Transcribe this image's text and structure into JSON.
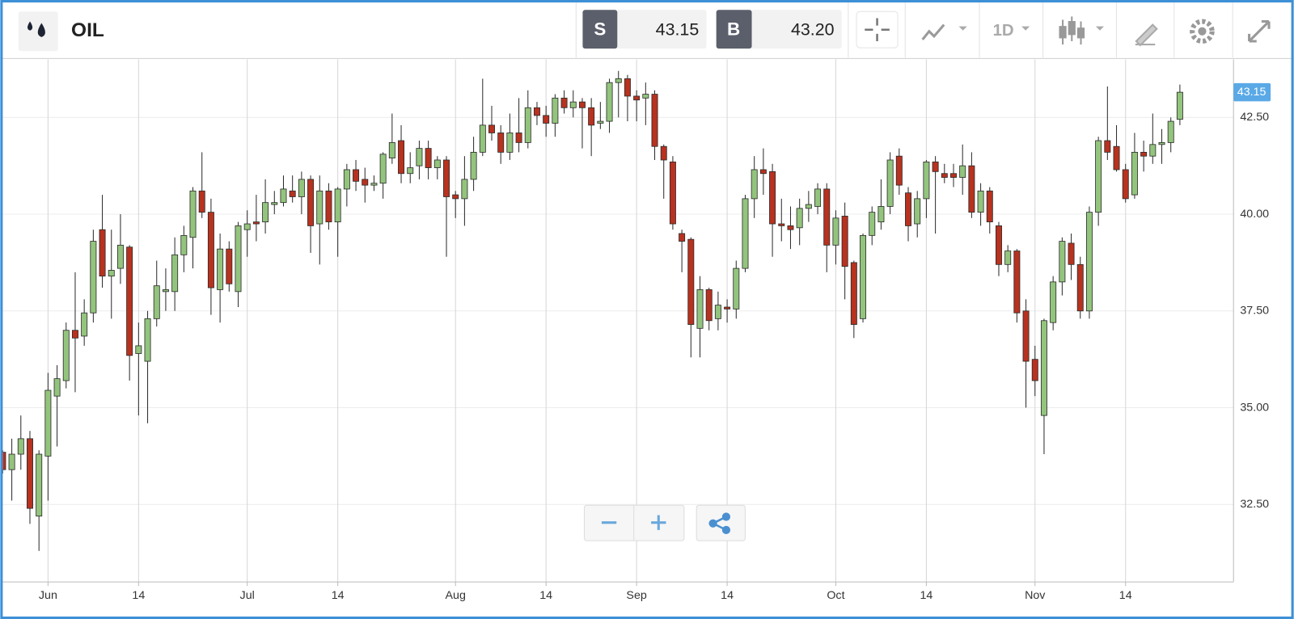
{
  "toolbar": {
    "symbol": "OIL",
    "sell_label": "S",
    "sell_price": "43.15",
    "buy_label": "B",
    "buy_price": "43.20",
    "interval": "1D"
  },
  "chart_data": {
    "type": "candlestick",
    "categories": [
      null,
      null,
      null,
      null,
      null,
      "Jun",
      null,
      null,
      null,
      null,
      null,
      null,
      null,
      null,
      null,
      "14",
      null,
      null,
      null,
      null,
      null,
      null,
      null,
      null,
      null,
      null,
      null,
      "Jul",
      null,
      null,
      null,
      null,
      null,
      null,
      null,
      null,
      null,
      "14",
      null,
      null,
      null,
      null,
      null,
      null,
      null,
      null,
      null,
      null,
      null,
      null,
      "Aug",
      null,
      null,
      null,
      null,
      null,
      null,
      null,
      null,
      null,
      "14",
      null,
      null,
      null,
      null,
      null,
      null,
      null,
      null,
      null,
      "Sep",
      null,
      null,
      null,
      null,
      null,
      null,
      null,
      null,
      null,
      "14",
      null,
      null,
      null,
      null,
      null,
      null,
      null,
      null,
      null,
      null,
      null,
      "Oct",
      null,
      null,
      null,
      null,
      null,
      null,
      null,
      null,
      null,
      "14",
      null,
      null,
      null,
      null,
      null,
      null,
      null,
      null,
      null,
      null,
      null,
      "Nov",
      null,
      null,
      null,
      null,
      null,
      null,
      null,
      null,
      null,
      "14",
      null,
      null,
      null,
      null,
      null,
      null
    ],
    "open": [
      33.85,
      33.4,
      33.8,
      34.2,
      32.2,
      33.75,
      35.3,
      35.7,
      37.0,
      36.85,
      37.45,
      39.6,
      38.4,
      38.6,
      39.15,
      36.4,
      36.2,
      37.3,
      38.0,
      38.0,
      38.95,
      39.4,
      40.6,
      40.05,
      38.05,
      39.1,
      38.0,
      39.6,
      39.8,
      39.8,
      40.25,
      40.3,
      40.6,
      40.45,
      40.9,
      39.75,
      40.6,
      39.8,
      40.65,
      41.15,
      40.9,
      40.75,
      40.8,
      41.45,
      41.9,
      41.05,
      41.25,
      41.7,
      41.2,
      41.4,
      40.5,
      40.4,
      40.9,
      41.6,
      42.3,
      42.1,
      41.6,
      42.1,
      41.85,
      42.75,
      42.55,
      42.35,
      43.0,
      42.75,
      42.9,
      42.75,
      42.35,
      42.4,
      43.4,
      43.5,
      43.05,
      43.0,
      43.1,
      41.75,
      41.35,
      39.5,
      39.35,
      37.05,
      38.05,
      37.3,
      37.6,
      37.55,
      38.6,
      40.4,
      41.15,
      41.1,
      39.75,
      39.7,
      39.65,
      40.15,
      40.2,
      40.65,
      39.2,
      39.95,
      38.75,
      37.3,
      39.45,
      39.8,
      40.2,
      41.5,
      40.55,
      39.75,
      40.4,
      41.35,
      41.05,
      41.05,
      40.95,
      41.25,
      40.05,
      40.6,
      39.7,
      38.7,
      39.05,
      37.5,
      36.25,
      34.8,
      37.2,
      38.25,
      39.25,
      38.7,
      37.5,
      40.05,
      41.9,
      41.75,
      41.15,
      40.5,
      41.6,
      41.5,
      41.8,
      41.85,
      42.45
    ],
    "high": [
      33.9,
      34.2,
      34.8,
      34.4,
      33.9,
      35.9,
      36.1,
      37.2,
      38.5,
      37.8,
      39.6,
      40.5,
      39.6,
      40.0,
      39.2,
      37.2,
      37.5,
      38.8,
      38.6,
      39.4,
      39.7,
      40.7,
      41.6,
      40.4,
      39.5,
      39.3,
      39.8,
      40.1,
      40.5,
      40.9,
      40.6,
      41.0,
      41.0,
      41.1,
      41.0,
      41.0,
      40.8,
      40.7,
      41.3,
      41.4,
      41.2,
      41.0,
      41.6,
      42.6,
      42.3,
      41.6,
      41.9,
      41.9,
      41.5,
      41.5,
      40.6,
      41.5,
      42.0,
      43.5,
      42.8,
      42.3,
      42.6,
      43.0,
      43.2,
      42.9,
      42.8,
      43.1,
      43.2,
      43.2,
      43.0,
      43.0,
      42.9,
      43.5,
      43.7,
      43.6,
      43.2,
      43.4,
      43.2,
      41.8,
      41.5,
      39.6,
      39.4,
      38.4,
      38.1,
      38.0,
      37.8,
      38.8,
      40.5,
      41.5,
      41.7,
      41.3,
      40.4,
      40.2,
      40.4,
      40.6,
      40.8,
      40.8,
      40.1,
      40.3,
      38.8,
      39.5,
      40.2,
      40.9,
      41.6,
      41.7,
      40.7,
      40.6,
      41.4,
      41.5,
      41.3,
      41.3,
      41.8,
      41.6,
      40.8,
      40.7,
      39.8,
      39.2,
      39.1,
      37.8,
      36.6,
      37.3,
      38.4,
      39.4,
      39.5,
      38.9,
      40.2,
      42.0,
      43.3,
      42.3,
      41.3,
      42.1,
      41.9,
      42.6,
      42.2,
      42.5,
      43.35
    ],
    "low": [
      33.3,
      32.6,
      33.4,
      32.0,
      31.3,
      32.6,
      34.0,
      35.5,
      35.4,
      36.6,
      37.2,
      38.1,
      37.3,
      38.2,
      35.7,
      34.8,
      34.6,
      37.1,
      37.5,
      37.5,
      38.5,
      38.6,
      39.9,
      37.4,
      37.2,
      38.0,
      37.6,
      38.9,
      39.3,
      39.5,
      40.0,
      40.2,
      40.3,
      40.0,
      39.0,
      38.7,
      39.6,
      38.9,
      40.2,
      40.6,
      40.3,
      40.6,
      40.4,
      41.3,
      40.8,
      40.8,
      40.9,
      40.9,
      40.9,
      38.9,
      39.9,
      39.7,
      40.6,
      41.5,
      41.9,
      41.3,
      41.4,
      41.6,
      41.7,
      42.3,
      42.0,
      42.0,
      42.6,
      42.5,
      41.7,
      41.5,
      42.2,
      42.1,
      42.5,
      42.4,
      42.4,
      42.3,
      41.4,
      40.4,
      39.6,
      38.5,
      36.3,
      36.3,
      37.0,
      37.0,
      37.2,
      37.3,
      38.5,
      39.9,
      40.5,
      38.9,
      39.3,
      39.1,
      39.2,
      39.8,
      40.0,
      38.5,
      38.7,
      37.8,
      36.8,
      37.2,
      39.2,
      39.6,
      40.0,
      40.5,
      39.3,
      39.4,
      39.9,
      39.5,
      40.8,
      40.7,
      40.5,
      39.9,
      39.7,
      39.5,
      38.4,
      38.5,
      37.2,
      35.0,
      35.3,
      33.8,
      37.0,
      37.9,
      38.3,
      37.3,
      37.3,
      39.7,
      41.4,
      41.1,
      40.3,
      40.4,
      41.1,
      41.3,
      41.3,
      41.6,
      42.3
    ],
    "close": [
      33.4,
      33.8,
      34.2,
      32.4,
      33.8,
      35.45,
      35.75,
      37.0,
      36.8,
      37.45,
      39.3,
      38.4,
      38.55,
      39.2,
      36.35,
      36.6,
      37.3,
      38.15,
      38.05,
      38.95,
      39.45,
      40.6,
      40.05,
      38.1,
      39.1,
      38.2,
      39.7,
      39.75,
      39.75,
      40.3,
      40.3,
      40.65,
      40.45,
      40.9,
      39.7,
      40.6,
      39.8,
      40.65,
      41.15,
      40.85,
      40.75,
      40.8,
      41.55,
      41.85,
      41.05,
      41.2,
      41.7,
      41.2,
      41.4,
      40.45,
      40.4,
      40.9,
      41.6,
      42.3,
      42.1,
      41.6,
      42.1,
      41.85,
      42.75,
      42.55,
      42.35,
      43.0,
      42.75,
      42.9,
      42.75,
      42.3,
      42.4,
      43.4,
      43.5,
      43.05,
      42.95,
      43.1,
      41.75,
      41.4,
      39.75,
      39.3,
      37.15,
      38.05,
      37.25,
      37.65,
      37.55,
      38.6,
      40.4,
      41.15,
      41.05,
      39.75,
      39.7,
      39.6,
      40.15,
      40.25,
      40.65,
      39.2,
      39.9,
      38.65,
      37.15,
      39.45,
      40.05,
      40.2,
      41.4,
      40.75,
      39.7,
      40.4,
      41.35,
      41.1,
      40.95,
      40.95,
      41.25,
      40.05,
      40.6,
      39.8,
      38.7,
      39.05,
      37.45,
      36.2,
      35.7,
      37.25,
      38.25,
      39.3,
      38.7,
      37.5,
      40.05,
      41.9,
      41.6,
      41.15,
      40.4,
      41.6,
      41.5,
      41.8,
      41.85,
      42.4,
      43.15
    ],
    "up_color": "#93c47d",
    "down_color": "#b7321f",
    "outline_color": "#2b2b2b",
    "last_value_label": "43.15",
    "last_value_color": "#5aa9e6",
    "ylim": [
      30.5,
      44.0
    ],
    "yticks": [
      {
        "value": 32.5,
        "label": "32.50"
      },
      {
        "value": 35,
        "label": "35.00"
      },
      {
        "value": 37.5,
        "label": "37.50"
      },
      {
        "value": 40,
        "label": "40.00"
      },
      {
        "value": 42.5,
        "label": "42.50"
      }
    ],
    "grid": true
  }
}
